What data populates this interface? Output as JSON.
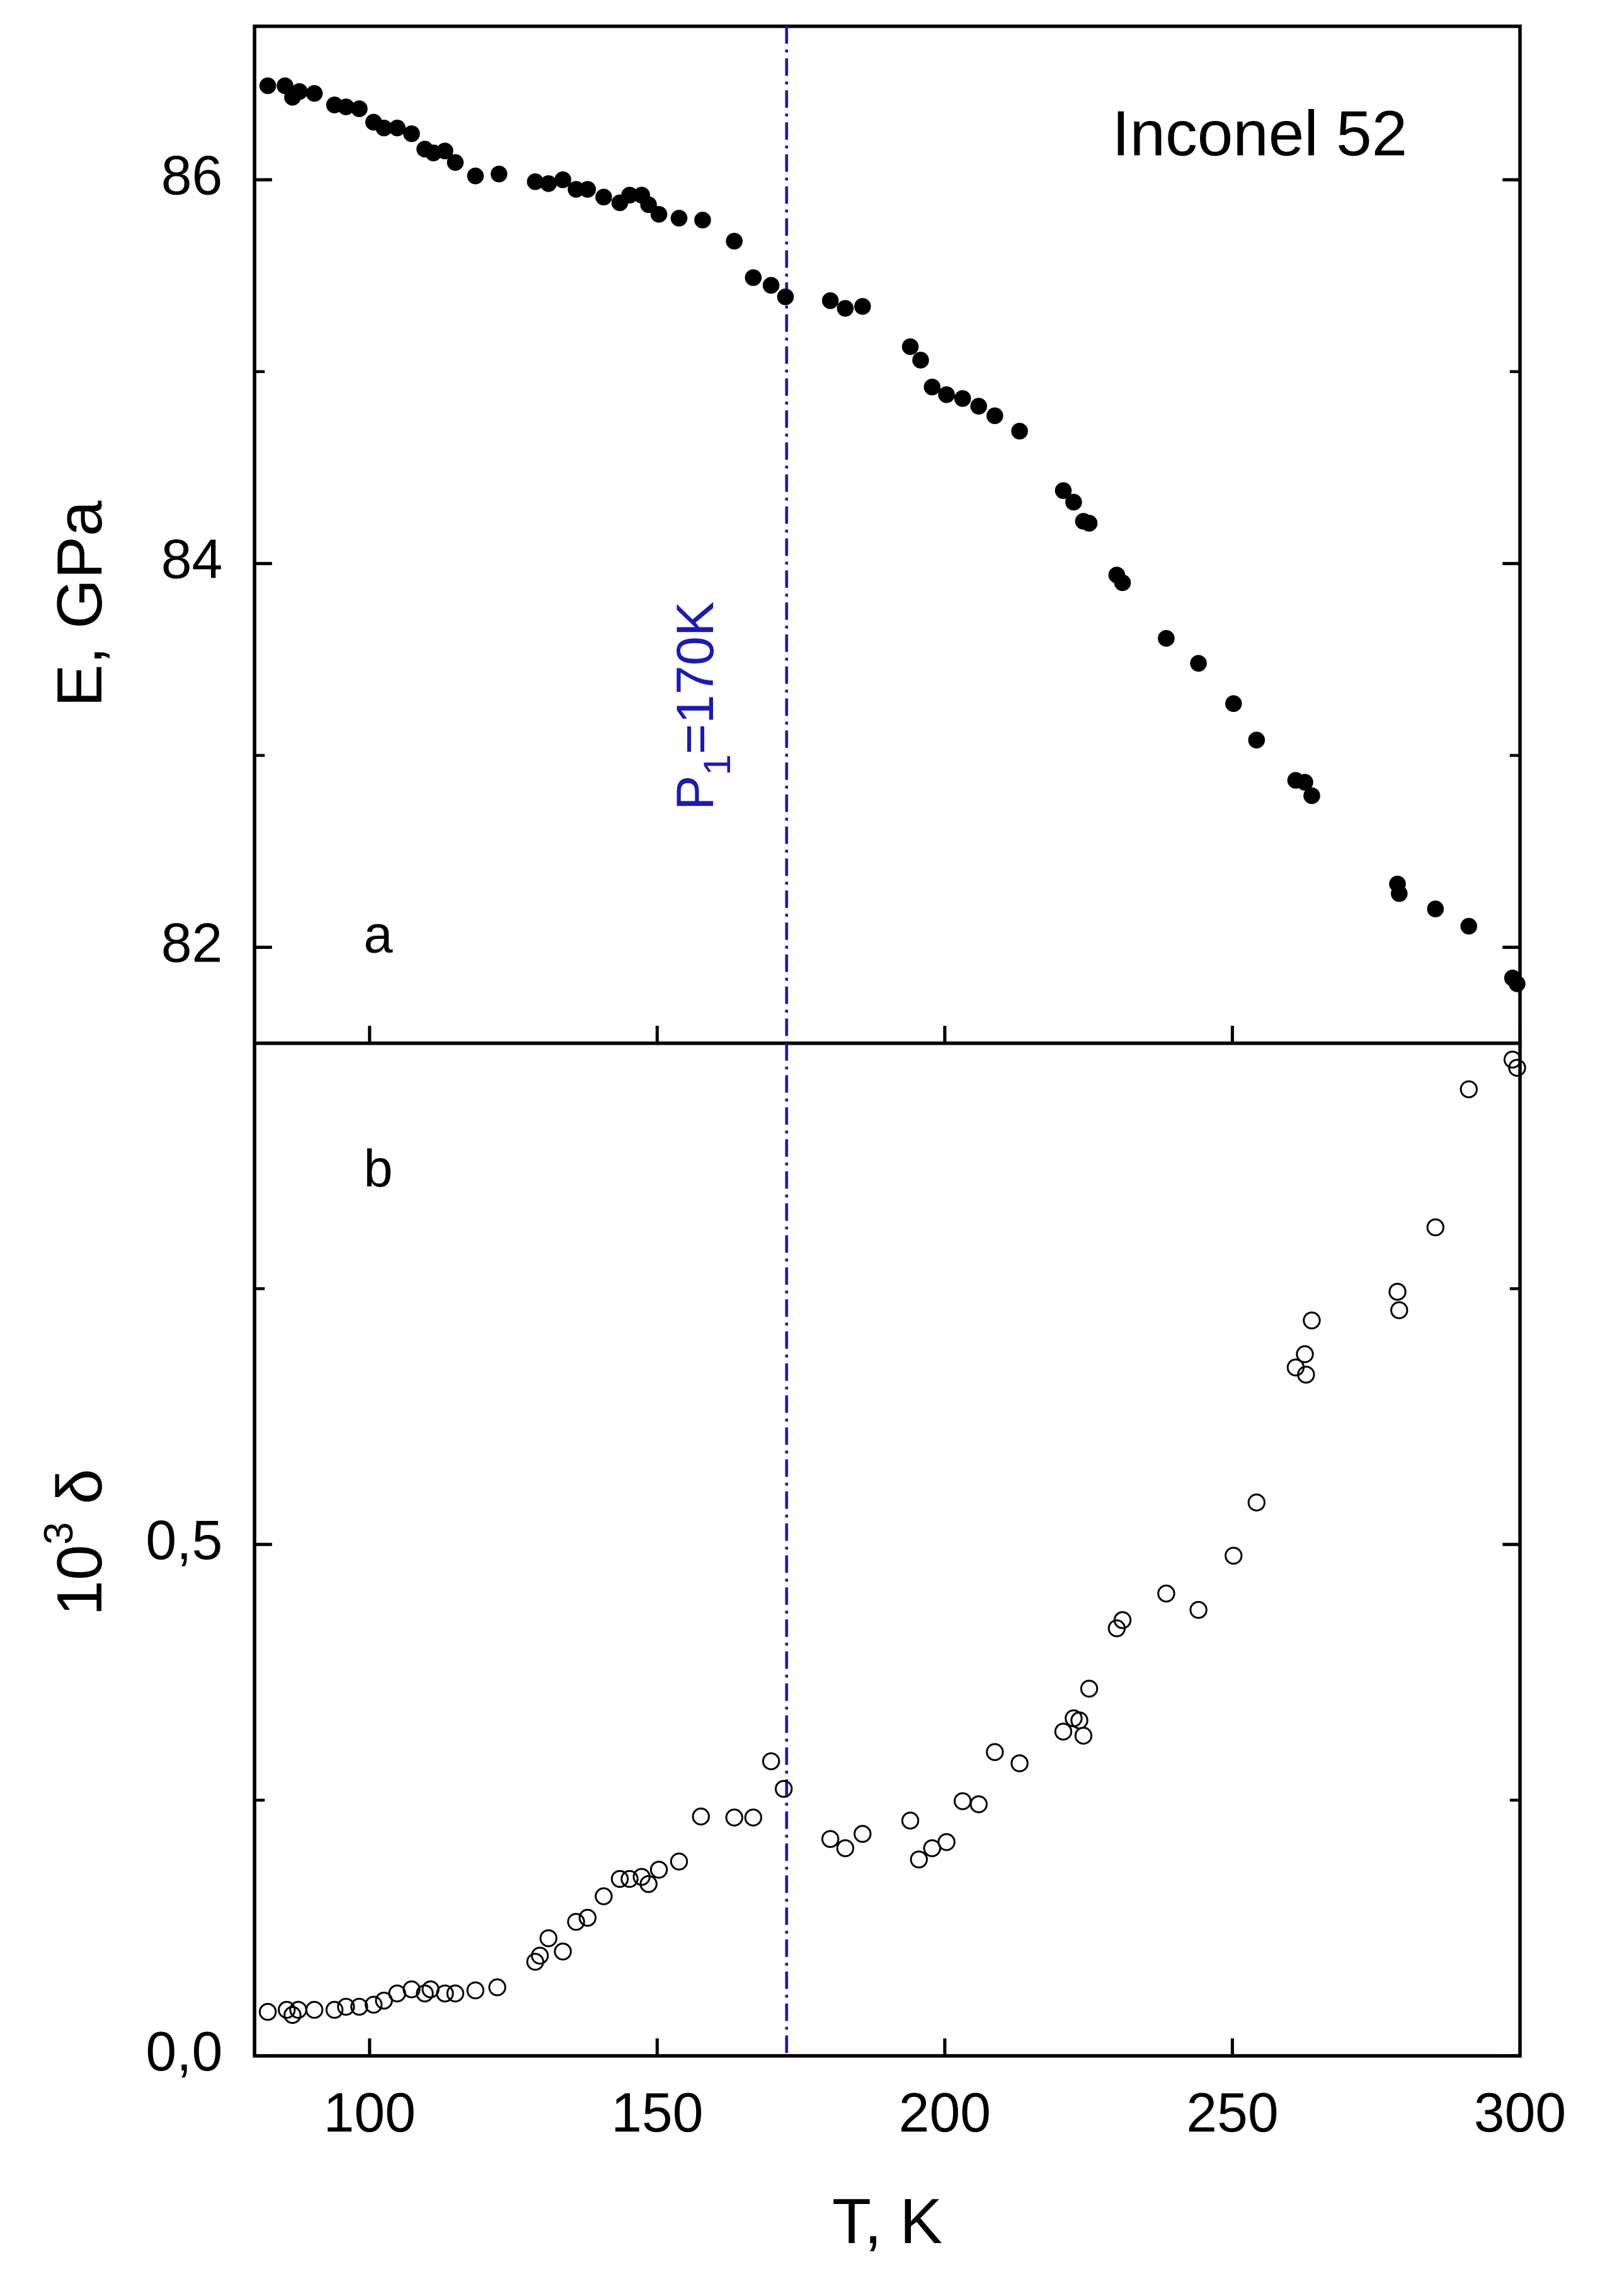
{
  "chart_data": [
    {
      "type": "scatter",
      "title": "Inconel 52",
      "panel_label": "a",
      "ylabel": "E, GPa",
      "x": [
        82.3,
        85.3,
        86.6,
        87.8,
        90.4,
        93.9,
        95.9,
        98.2,
        100.7,
        102.5,
        104.8,
        107.3,
        109.6,
        111.1,
        113.1,
        114.9,
        118.4,
        122.5,
        128.8,
        131.1,
        133.6,
        135.9,
        137.9,
        140.7,
        143.5,
        145.2,
        147.3,
        148.5,
        150.3,
        153.8,
        157.9,
        163.4,
        166.7,
        169.8,
        172.3,
        180.1,
        182.7,
        185.7,
        194.0,
        195.8,
        197.8,
        200.3,
        203.1,
        205.9,
        208.7,
        213.0,
        220.6,
        222.4,
        224.1,
        225.1,
        229.9,
        230.9,
        238.5,
        244.1,
        250.2,
        254.2,
        261.0,
        262.6,
        263.8,
        278.7,
        279.0,
        285.3,
        291.1,
        298.7,
        299.5
      ],
      "values": [
        86.49,
        86.49,
        86.43,
        86.46,
        86.45,
        86.39,
        86.38,
        86.37,
        86.3,
        86.27,
        86.27,
        86.24,
        86.16,
        86.14,
        86.15,
        86.09,
        86.02,
        86.03,
        85.99,
        85.98,
        86.0,
        85.95,
        85.95,
        85.91,
        85.88,
        85.92,
        85.92,
        85.87,
        85.82,
        85.8,
        85.79,
        85.68,
        85.49,
        85.45,
        85.39,
        85.37,
        85.33,
        85.34,
        85.13,
        85.06,
        84.92,
        84.88,
        84.86,
        84.82,
        84.77,
        84.69,
        84.38,
        84.32,
        84.22,
        84.21,
        83.94,
        83.9,
        83.61,
        83.48,
        83.27,
        83.08,
        82.87,
        82.86,
        82.79,
        82.33,
        82.28,
        82.2,
        82.11,
        81.84,
        81.81
      ],
      "color": "#000000",
      "marker": "filled",
      "xlim": [
        80,
        300
      ],
      "xticks": [
        100,
        150,
        200,
        250,
        300
      ],
      "ylim": [
        81.5,
        86.8
      ],
      "yticks": [
        82,
        84,
        86
      ],
      "yminorticks": [
        83,
        85
      ],
      "vline": {
        "x": 172.5,
        "color": "#1a1ab8",
        "label": [
          "P",
          "1",
          "=170K"
        ]
      }
    },
    {
      "type": "scatter",
      "panel_label": "b",
      "ylabel": [
        "10",
        "3",
        " δ"
      ],
      "xlabel": "T, K",
      "x": [
        82.3,
        85.6,
        86.6,
        87.6,
        90.4,
        93.9,
        95.9,
        98.2,
        100.7,
        102.5,
        104.8,
        107.3,
        109.6,
        110.6,
        113.1,
        114.9,
        118.4,
        122.2,
        128.8,
        129.6,
        131.1,
        133.6,
        135.9,
        137.9,
        140.7,
        143.5,
        145.2,
        147.3,
        148.5,
        150.3,
        153.8,
        157.6,
        163.4,
        166.7,
        169.8,
        172.0,
        180.1,
        182.7,
        185.7,
        194.0,
        195.5,
        197.8,
        200.3,
        203.1,
        205.9,
        208.7,
        213.0,
        220.6,
        222.4,
        223.4,
        224.1,
        225.1,
        229.9,
        230.9,
        238.5,
        244.1,
        250.2,
        254.2,
        261.0,
        262.6,
        262.8,
        263.8,
        278.7,
        279.0,
        285.3,
        291.1,
        298.7,
        299.5
      ],
      "values": [
        0.043,
        0.045,
        0.04,
        0.045,
        0.045,
        0.045,
        0.048,
        0.048,
        0.05,
        0.054,
        0.061,
        0.065,
        0.061,
        0.065,
        0.061,
        0.061,
        0.064,
        0.067,
        0.092,
        0.098,
        0.115,
        0.102,
        0.131,
        0.135,
        0.156,
        0.173,
        0.173,
        0.175,
        0.168,
        0.182,
        0.19,
        0.234,
        0.233,
        0.233,
        0.288,
        0.261,
        0.212,
        0.203,
        0.217,
        0.23,
        0.192,
        0.203,
        0.209,
        0.249,
        0.246,
        0.297,
        0.286,
        0.317,
        0.33,
        0.328,
        0.313,
        0.359,
        0.418,
        0.426,
        0.452,
        0.436,
        0.489,
        0.541,
        0.673,
        0.686,
        0.666,
        0.719,
        0.747,
        0.729,
        0.81,
        0.945,
        0.974,
        0.966
      ],
      "color": "#000000",
      "marker": "open",
      "xlim": [
        80,
        300
      ],
      "xticks": [
        100,
        150,
        200,
        250,
        300
      ],
      "ylim": [
        0,
        0.99
      ],
      "yticks": [
        {
          "value": 0,
          "label": "0,0"
        },
        {
          "value": 0.5,
          "label": "0,5"
        }
      ],
      "yminorticks": [
        0.25,
        0.75
      ],
      "vline": {
        "x": 172.5,
        "color": "#1a1ab8"
      }
    }
  ]
}
